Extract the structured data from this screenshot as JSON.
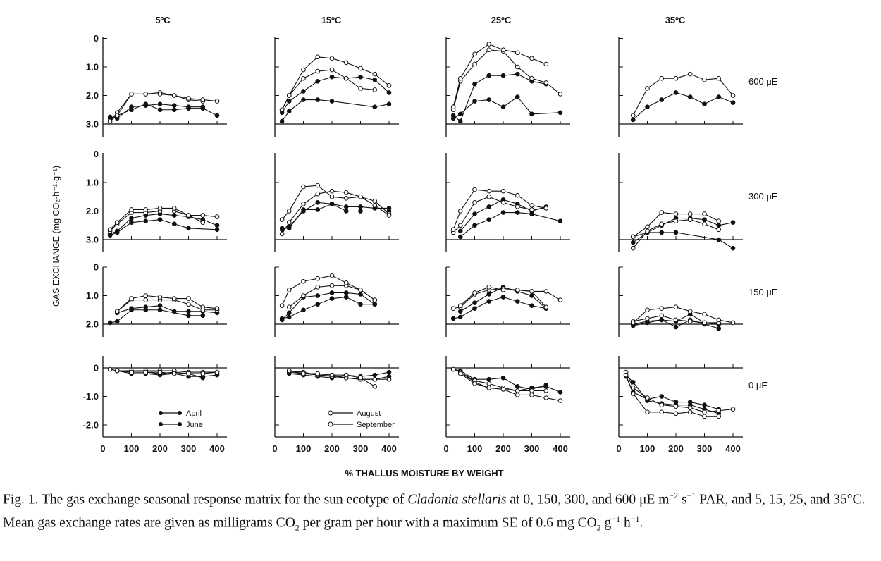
{
  "columns": [
    "5ºC",
    "15ºC",
    "25ºC",
    "35ºC"
  ],
  "rows": [
    "600 μE",
    "300 μE",
    "150 μE",
    "0 μE"
  ],
  "ylabel": "GAS EXCHANGE (mg CO₂·h⁻¹·g⁻¹)",
  "xlabel": "% THALLUS MOISTURE BY WEIGHT",
  "xticks": [
    "0",
    "100",
    "200",
    "300",
    "400"
  ],
  "yticks_upper": [
    "3.0",
    "2.0",
    "1.0",
    "0"
  ],
  "yticks_mid": [
    "2.0",
    "1.0",
    "0"
  ],
  "yticks_lower": [
    "0",
    "-1.0",
    "-2.0"
  ],
  "legend": {
    "april": "April",
    "june": "June",
    "august": "August",
    "september": "September"
  },
  "caption": {
    "fig_label": "Fig. 1.",
    "part1": " The gas exchange seasonal response matrix for the sun ecotype of ",
    "species": "Cladonia stellaris",
    "part2": " at 0, 150, 300, and 600 μE m",
    "sup1": "−2",
    "part3": " s",
    "sup2": "−1",
    "part4": " PAR, and 5, 15, 25, and 35°C. Mean gas exchange rates are given as milligrams CO",
    "sub1": "2",
    "part5": " per gram per hour with a maximum SE of 0.6 mg CO",
    "sub2": "2",
    "part6": " g",
    "sup3": "−1",
    "part7": " h",
    "sup4": "−1",
    "part8": "."
  },
  "colors": {
    "ink": "#111111",
    "open_marker_fill": "#ffffff"
  },
  "chart_data": {
    "type": "line",
    "xlim": [
      0,
      420
    ],
    "x": [
      25,
      50,
      100,
      150,
      200,
      250,
      300,
      350,
      400
    ],
    "panel_ylims": {
      "600": [
        0,
        3
      ],
      "300": [
        0,
        3
      ],
      "150": [
        0,
        2
      ],
      "0": [
        -2.2,
        0.2
      ]
    },
    "series_style": {
      "April": "filled",
      "June": "filled",
      "August": "open",
      "September": "open"
    },
    "panels": [
      {
        "temp": "5ºC",
        "light": "600",
        "series": [
          {
            "name": "April",
            "y": [
              0.2,
              0.3,
              0.5,
              0.7,
              0.5,
              0.5,
              0.55,
              0.55,
              0.3
            ]
          },
          {
            "name": "June",
            "y": [
              0.25,
              0.2,
              0.6,
              0.65,
              0.7,
              0.65,
              0.6,
              0.6,
              null
            ]
          },
          {
            "name": "August",
            "y": [
              0.1,
              0.4,
              1.05,
              1.05,
              1.1,
              1.0,
              0.85,
              0.8,
              null
            ]
          },
          {
            "name": "September",
            "y": [
              0.1,
              0.3,
              1.05,
              1.05,
              1.05,
              1.0,
              0.9,
              0.85,
              0.8
            ]
          }
        ]
      },
      {
        "temp": "15ºC",
        "light": "600",
        "series": [
          {
            "name": "April",
            "y": [
              0.1,
              0.45,
              0.85,
              0.85,
              0.8,
              null,
              null,
              0.6,
              0.7
            ]
          },
          {
            "name": "June",
            "y": [
              0.4,
              0.8,
              1.15,
              1.5,
              1.65,
              1.6,
              1.65,
              1.55,
              1.1
            ]
          },
          {
            "name": "August",
            "y": [
              0.5,
              1.0,
              1.6,
              1.85,
              1.9,
              1.6,
              1.25,
              1.2,
              null
            ]
          },
          {
            "name": "September",
            "y": [
              0.5,
              1.0,
              1.9,
              2.35,
              2.3,
              2.15,
              1.95,
              1.75,
              1.35
            ]
          }
        ]
      },
      {
        "temp": "25ºC",
        "light": "600",
        "series": [
          {
            "name": "April",
            "y": [
              0.2,
              0.35,
              0.8,
              0.85,
              0.6,
              0.95,
              0.35,
              null,
              0.4
            ]
          },
          {
            "name": "June",
            "y": [
              0.3,
              0.1,
              1.4,
              1.7,
              1.7,
              1.75,
              1.5,
              1.4,
              null
            ]
          },
          {
            "name": "August",
            "y": [
              0.5,
              1.5,
              2.1,
              2.6,
              2.55,
              2.0,
              1.6,
              1.45,
              1.05
            ]
          },
          {
            "name": "September",
            "y": [
              0.6,
              1.6,
              2.45,
              2.8,
              2.6,
              2.5,
              2.3,
              2.1,
              null
            ]
          }
        ]
      },
      {
        "temp": "35ºC",
        "light": "600",
        "series": [
          {
            "name": "June",
            "y": [
              null,
              0.15,
              0.6,
              0.85,
              1.1,
              0.95,
              0.7,
              0.95,
              0.75
            ]
          },
          {
            "name": "September",
            "y": [
              null,
              0.3,
              1.25,
              1.6,
              1.6,
              1.75,
              1.55,
              1.6,
              1.0
            ]
          }
        ]
      },
      {
        "temp": "5ºC",
        "light": "300",
        "series": [
          {
            "name": "April",
            "y": [
              0.15,
              0.25,
              0.6,
              0.65,
              0.7,
              0.55,
              0.4,
              null,
              0.35
            ]
          },
          {
            "name": "June",
            "y": [
              0.2,
              0.3,
              0.75,
              0.85,
              0.9,
              0.85,
              0.8,
              0.7,
              0.5
            ]
          },
          {
            "name": "August",
            "y": [
              0.3,
              0.55,
              0.95,
              0.95,
              1.0,
              1.0,
              0.85,
              0.6,
              null
            ]
          },
          {
            "name": "September",
            "y": [
              0.35,
              0.6,
              1.05,
              1.05,
              1.1,
              1.1,
              0.85,
              0.85,
              0.8
            ]
          }
        ]
      },
      {
        "temp": "15ºC",
        "light": "300",
        "series": [
          {
            "name": "April",
            "y": [
              0.4,
              0.4,
              1.05,
              1.05,
              1.25,
              1.0,
              1.0,
              null,
              1.0
            ]
          },
          {
            "name": "June",
            "y": [
              0.35,
              0.45,
              1.0,
              1.3,
              1.25,
              1.15,
              1.15,
              1.1,
              1.1
            ]
          },
          {
            "name": "August",
            "y": [
              0.2,
              0.6,
              1.25,
              1.6,
              1.7,
              1.65,
              1.5,
              1.35,
              0.9
            ]
          },
          {
            "name": "September",
            "y": [
              0.7,
              1.0,
              1.85,
              1.9,
              1.5,
              1.45,
              1.5,
              1.2,
              0.85
            ]
          }
        ]
      },
      {
        "temp": "25ºC",
        "light": "300",
        "series": [
          {
            "name": "April",
            "y": [
              null,
              0.1,
              0.5,
              0.7,
              0.95,
              0.95,
              0.9,
              null,
              0.65
            ]
          },
          {
            "name": "June",
            "y": [
              null,
              0.3,
              0.9,
              1.15,
              1.4,
              1.25,
              1.0,
              1.15,
              null
            ]
          },
          {
            "name": "August",
            "y": [
              0.25,
              0.5,
              1.3,
              1.5,
              1.3,
              1.15,
              1.05,
              1.1,
              null
            ]
          },
          {
            "name": "September",
            "y": [
              0.35,
              1.0,
              1.75,
              1.7,
              1.7,
              1.55,
              1.2,
              1.1,
              null
            ]
          }
        ]
      },
      {
        "temp": "35ºC",
        "light": "300",
        "series": [
          {
            "name": "April",
            "y": [
              null,
              -0.1,
              0.25,
              0.25,
              0.25,
              null,
              null,
              0.0,
              -0.3
            ]
          },
          {
            "name": "June",
            "y": [
              null,
              0.1,
              0.25,
              0.5,
              0.75,
              0.75,
              0.7,
              0.5,
              0.6
            ]
          },
          {
            "name": "August",
            "y": [
              null,
              -0.3,
              0.3,
              0.55,
              0.65,
              0.7,
              0.55,
              0.35,
              null
            ]
          },
          {
            "name": "September",
            "y": [
              null,
              0.1,
              0.45,
              0.95,
              0.9,
              0.9,
              0.9,
              0.65,
              null
            ]
          }
        ]
      },
      {
        "temp": "5ºC",
        "light": "150",
        "series": [
          {
            "name": "April",
            "y": [
              0.05,
              0.1,
              0.5,
              0.5,
              0.5,
              null,
              0.3,
              0.3,
              null
            ]
          },
          {
            "name": "June",
            "y": [
              null,
              0.4,
              0.55,
              0.6,
              0.65,
              0.45,
              0.45,
              0.45,
              0.4
            ]
          },
          {
            "name": "August",
            "y": [
              null,
              0.45,
              0.85,
              0.85,
              0.85,
              0.85,
              0.7,
              0.5,
              0.5
            ]
          },
          {
            "name": "September",
            "y": [
              null,
              0.45,
              0.9,
              1.0,
              0.95,
              0.9,
              0.9,
              0.6,
              0.55
            ]
          }
        ]
      },
      {
        "temp": "15ºC",
        "light": "150",
        "series": [
          {
            "name": "April",
            "y": [
              0.2,
              0.25,
              0.5,
              0.7,
              0.9,
              0.95,
              0.7,
              0.7,
              null
            ]
          },
          {
            "name": "June",
            "y": [
              0.15,
              0.4,
              0.95,
              1.0,
              1.1,
              1.1,
              1.05,
              0.7,
              null
            ]
          },
          {
            "name": "August",
            "y": [
              null,
              0.6,
              1.0,
              1.3,
              1.35,
              1.35,
              1.2,
              0.85,
              null
            ]
          },
          {
            "name": "September",
            "y": [
              0.65,
              1.2,
              1.5,
              1.6,
              1.7,
              1.45,
              1.2,
              0.85,
              null
            ]
          }
        ]
      },
      {
        "temp": "25ºC",
        "light": "150",
        "series": [
          {
            "name": "April",
            "y": [
              0.2,
              0.25,
              0.55,
              0.8,
              0.95,
              0.8,
              0.65,
              0.55,
              null
            ]
          },
          {
            "name": "June",
            "y": [
              null,
              0.45,
              0.75,
              1.05,
              1.3,
              1.15,
              1.0,
              0.55,
              null
            ]
          },
          {
            "name": "August",
            "y": [
              0.55,
              0.6,
              1.05,
              1.2,
              1.25,
              1.2,
              1.15,
              0.6,
              null
            ]
          },
          {
            "name": "September",
            "y": [
              null,
              0.65,
              1.1,
              1.3,
              1.2,
              1.2,
              1.15,
              1.15,
              0.85
            ]
          }
        ]
      },
      {
        "temp": "35ºC",
        "light": "150",
        "series": [
          {
            "name": "April",
            "y": [
              null,
              -0.05,
              0.05,
              0.15,
              0.1,
              0.35,
              0.05,
              0.0,
              null
            ]
          },
          {
            "name": "June",
            "y": [
              null,
              0.0,
              0.1,
              0.15,
              -0.1,
              0.15,
              0.0,
              -0.15,
              null
            ]
          },
          {
            "name": "August",
            "y": [
              null,
              0.1,
              0.2,
              0.3,
              0.15,
              0.1,
              0.05,
              0.05,
              null
            ]
          },
          {
            "name": "September",
            "y": [
              null,
              0.05,
              0.5,
              0.55,
              0.6,
              0.45,
              0.35,
              0.15,
              0.05
            ]
          }
        ]
      },
      {
        "temp": "5ºC",
        "light": "0",
        "series": [
          {
            "name": "April",
            "y": [
              null,
              -0.1,
              -0.2,
              -0.2,
              -0.25,
              -0.2,
              -0.3,
              -0.3,
              -0.25
            ]
          },
          {
            "name": "June",
            "y": [
              null,
              -0.1,
              -0.15,
              -0.15,
              -0.2,
              -0.15,
              -0.2,
              -0.35,
              null
            ]
          },
          {
            "name": "August",
            "y": [
              -0.05,
              -0.1,
              -0.1,
              -0.1,
              -0.1,
              -0.1,
              -0.15,
              -0.15,
              -0.15
            ]
          },
          {
            "name": "September",
            "y": [
              null,
              -0.1,
              -0.15,
              -0.15,
              -0.15,
              -0.2,
              -0.2,
              -0.2,
              -0.15
            ]
          }
        ]
      },
      {
        "temp": "15ºC",
        "light": "0",
        "series": [
          {
            "name": "April",
            "y": [
              null,
              -0.2,
              -0.25,
              -0.3,
              -0.35,
              -0.25,
              -0.3,
              -0.25,
              -0.15
            ]
          },
          {
            "name": "June",
            "y": [
              null,
              -0.15,
              -0.2,
              -0.25,
              -0.25,
              -0.35,
              -0.4,
              -0.4,
              -0.3
            ]
          },
          {
            "name": "August",
            "y": [
              null,
              -0.1,
              -0.15,
              -0.25,
              -0.3,
              -0.35,
              -0.4,
              -0.4,
              -0.4
            ]
          },
          {
            "name": "September",
            "y": [
              null,
              -0.1,
              -0.2,
              -0.2,
              -0.25,
              -0.25,
              -0.35,
              -0.65,
              null
            ]
          }
        ]
      },
      {
        "temp": "25ºC",
        "light": "0",
        "series": [
          {
            "name": "April",
            "y": [
              null,
              -0.15,
              -0.5,
              -0.7,
              -0.75,
              -0.8,
              -0.7,
              -0.65,
              -0.85
            ]
          },
          {
            "name": "June",
            "y": [
              -0.05,
              -0.1,
              -0.4,
              -0.4,
              -0.35,
              -0.65,
              -0.75,
              -0.6,
              null
            ]
          },
          {
            "name": "August",
            "y": [
              -0.05,
              -0.15,
              -0.45,
              -0.55,
              -0.7,
              -0.8,
              -0.8,
              -0.8,
              null
            ]
          },
          {
            "name": "September",
            "y": [
              null,
              -0.2,
              -0.55,
              -0.7,
              -0.75,
              -0.95,
              -0.95,
              -1.05,
              -1.15
            ]
          }
        ]
      },
      {
        "temp": "35ºC",
        "light": "0",
        "series": [
          {
            "name": "April",
            "y": [
              -0.25,
              -0.5,
              -1.15,
              -1.25,
              -1.3,
              -1.3,
              -1.45,
              -1.6,
              null
            ]
          },
          {
            "name": "June",
            "y": [
              -0.3,
              -0.85,
              -1.1,
              -1.0,
              -1.2,
              -1.2,
              -1.3,
              -1.45,
              null
            ]
          },
          {
            "name": "August",
            "y": [
              -0.15,
              -0.7,
              -1.05,
              -1.3,
              -1.35,
              -1.4,
              -1.55,
              -1.5,
              -1.45
            ]
          },
          {
            "name": "September",
            "y": [
              -0.25,
              -0.9,
              -1.55,
              -1.55,
              -1.6,
              -1.55,
              -1.7,
              -1.7,
              null
            ]
          }
        ]
      }
    ]
  }
}
